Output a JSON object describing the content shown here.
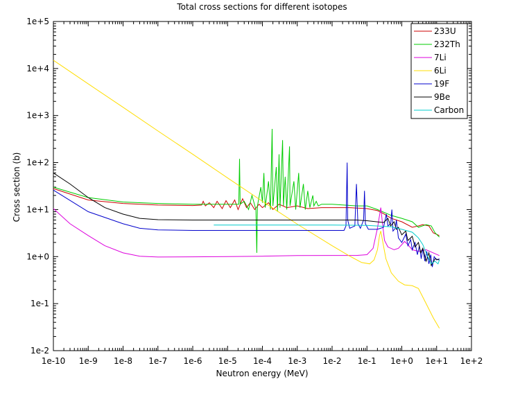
{
  "chart_data": {
    "type": "line",
    "title": "Total cross sections for different isotopes",
    "xlabel": "Neutron energy (MeV)",
    "ylabel": "Cross section (b)",
    "xscale": "log",
    "yscale": "log",
    "xlim": [
      1e-10,
      100
    ],
    "ylim": [
      0.01,
      100000
    ],
    "grid": false,
    "legend_position": "top-right",
    "xticks": [
      {
        "value": 1e-10,
        "label": "1e-10"
      },
      {
        "value": 1e-09,
        "label": "1e-9"
      },
      {
        "value": 1e-08,
        "label": "1e-8"
      },
      {
        "value": 1e-07,
        "label": "1e-7"
      },
      {
        "value": 1e-06,
        "label": "1e-6"
      },
      {
        "value": 1e-05,
        "label": "1e-5"
      },
      {
        "value": 0.0001,
        "label": "1e-4"
      },
      {
        "value": 0.001,
        "label": "1e-3"
      },
      {
        "value": 0.01,
        "label": "1e-2"
      },
      {
        "value": 0.1,
        "label": "1e-1"
      },
      {
        "value": 1,
        "label": "1e+0"
      },
      {
        "value": 10,
        "label": "1e+1"
      },
      {
        "value": 100,
        "label": "1e+2"
      }
    ],
    "yticks": [
      {
        "value": 0.01,
        "label": "1e-2"
      },
      {
        "value": 0.1,
        "label": "1e-1"
      },
      {
        "value": 1,
        "label": "1e+0"
      },
      {
        "value": 10,
        "label": "1e+1"
      },
      {
        "value": 100,
        "label": "1e+2"
      },
      {
        "value": 1000,
        "label": "1e+3"
      },
      {
        "value": 10000,
        "label": "1e+4"
      },
      {
        "value": 100000,
        "label": "1e+5"
      }
    ],
    "series": [
      {
        "name": "233U",
        "color": "#cc0000",
        "points": [
          [
            1e-10,
            28
          ],
          [
            1e-09,
            16
          ],
          [
            1e-08,
            13.5
          ],
          [
            1e-07,
            12.5
          ],
          [
            1e-06,
            12.2
          ],
          [
            1.8e-06,
            12.5
          ],
          [
            2e-06,
            15
          ],
          [
            2.3e-06,
            12
          ],
          [
            3e-06,
            14
          ],
          [
            4e-06,
            11
          ],
          [
            5e-06,
            15
          ],
          [
            7e-06,
            10.5
          ],
          [
            9e-06,
            15.5
          ],
          [
            1.2e-05,
            11
          ],
          [
            1.6e-05,
            16
          ],
          [
            2e-05,
            10
          ],
          [
            2.7e-05,
            17
          ],
          [
            3.5e-05,
            11
          ],
          [
            4.5e-05,
            14
          ],
          [
            6e-05,
            10
          ],
          [
            8e-05,
            13
          ],
          [
            0.0001,
            11
          ],
          [
            0.00015,
            14
          ],
          [
            0.0002,
            10
          ],
          [
            0.0003,
            13
          ],
          [
            0.0005,
            11
          ],
          [
            0.001,
            12
          ],
          [
            0.002,
            10.5
          ],
          [
            0.005,
            11
          ],
          [
            0.01,
            11
          ],
          [
            0.03,
            11
          ],
          [
            0.1,
            10.5
          ],
          [
            0.2,
            9.5
          ],
          [
            0.3,
            8.2
          ],
          [
            0.5,
            6.5
          ],
          [
            1,
            5.5
          ],
          [
            2,
            4.2
          ],
          [
            3,
            4.5
          ],
          [
            4,
            4.8
          ],
          [
            6,
            4.5
          ],
          [
            8,
            3.2
          ],
          [
            12,
            2.8
          ]
        ]
      },
      {
        "name": "232Th",
        "color": "#00cc00",
        "points": [
          [
            1e-10,
            30
          ],
          [
            1e-09,
            18
          ],
          [
            1e-08,
            14.5
          ],
          [
            1e-07,
            13.5
          ],
          [
            1e-06,
            13
          ],
          [
            1e-05,
            13
          ],
          [
            2.1e-05,
            13
          ],
          [
            2.2e-05,
            120
          ],
          [
            2.3e-05,
            13
          ],
          [
            3e-05,
            15
          ],
          [
            4e-05,
            10
          ],
          [
            5e-05,
            20
          ],
          [
            6.5e-05,
            10
          ],
          [
            6.9e-05,
            1.2
          ],
          [
            7.2e-05,
            12
          ],
          [
            9e-05,
            30
          ],
          [
            0.0001,
            14
          ],
          [
            0.00011,
            60
          ],
          [
            0.00012,
            11
          ],
          [
            0.00015,
            40
          ],
          [
            0.00017,
            10
          ],
          [
            0.00019,
            520
          ],
          [
            0.0002,
            12
          ],
          [
            0.00025,
            80
          ],
          [
            0.00027,
            9
          ],
          [
            0.0003,
            150
          ],
          [
            0.00032,
            11
          ],
          [
            0.00038,
            300
          ],
          [
            0.0004,
            12
          ],
          [
            0.00045,
            50
          ],
          [
            0.0005,
            10
          ],
          [
            0.0006,
            220
          ],
          [
            0.00062,
            12
          ],
          [
            0.0008,
            40
          ],
          [
            0.0009,
            10
          ],
          [
            0.0011,
            60
          ],
          [
            0.0012,
            11
          ],
          [
            0.0015,
            35
          ],
          [
            0.0017,
            10
          ],
          [
            0.002,
            25
          ],
          [
            0.0023,
            11
          ],
          [
            0.0028,
            20
          ],
          [
            0.003,
            12
          ],
          [
            0.0035,
            15
          ],
          [
            0.004,
            12
          ],
          [
            0.005,
            13
          ],
          [
            0.01,
            13
          ],
          [
            0.05,
            12
          ],
          [
            0.1,
            12
          ],
          [
            0.2,
            10
          ],
          [
            0.5,
            7.5
          ],
          [
            1,
            6.5
          ],
          [
            2,
            5.5
          ],
          [
            3,
            4.2
          ],
          [
            5,
            4.8
          ],
          [
            7,
            4.5
          ],
          [
            9,
            3.2
          ],
          [
            12,
            2.6
          ]
        ]
      },
      {
        "name": "7Li",
        "color": "#dd00dd",
        "points": [
          [
            1e-10,
            10.5
          ],
          [
            3e-10,
            5
          ],
          [
            1e-09,
            2.8
          ],
          [
            3e-09,
            1.7
          ],
          [
            1e-08,
            1.2
          ],
          [
            3e-08,
            1.02
          ],
          [
            1e-07,
            0.98
          ],
          [
            1e-06,
            0.99
          ],
          [
            1e-05,
            1.0
          ],
          [
            0.0001,
            1.02
          ],
          [
            0.001,
            1.05
          ],
          [
            0.01,
            1.06
          ],
          [
            0.05,
            1.06
          ],
          [
            0.1,
            1.1
          ],
          [
            0.15,
            1.5
          ],
          [
            0.2,
            4
          ],
          [
            0.25,
            11
          ],
          [
            0.28,
            5
          ],
          [
            0.32,
            2.2
          ],
          [
            0.4,
            1.6
          ],
          [
            0.6,
            1.4
          ],
          [
            0.8,
            1.5
          ],
          [
            1,
            1.8
          ],
          [
            1.2,
            2.1
          ],
          [
            1.5,
            1.8
          ],
          [
            2,
            1.4
          ],
          [
            3,
            1.3
          ],
          [
            5,
            1.4
          ],
          [
            8,
            1.2
          ],
          [
            12,
            1.05
          ]
        ]
      },
      {
        "name": "6Li",
        "color": "#ffdd00",
        "points": [
          [
            1e-10,
            15000
          ],
          [
            1e-09,
            4700
          ],
          [
            1e-08,
            1500
          ],
          [
            1e-07,
            470
          ],
          [
            1e-06,
            150
          ],
          [
            1e-05,
            47
          ],
          [
            0.0001,
            15
          ],
          [
            0.001,
            4.9
          ],
          [
            0.01,
            1.7
          ],
          [
            0.03,
            1.05
          ],
          [
            0.07,
            0.75
          ],
          [
            0.12,
            0.7
          ],
          [
            0.16,
            0.85
          ],
          [
            0.2,
            1.4
          ],
          [
            0.23,
            2.8
          ],
          [
            0.25,
            3.5
          ],
          [
            0.28,
            2.2
          ],
          [
            0.35,
            0.9
          ],
          [
            0.5,
            0.45
          ],
          [
            0.8,
            0.3
          ],
          [
            1.2,
            0.25
          ],
          [
            2,
            0.24
          ],
          [
            3,
            0.21
          ],
          [
            5,
            0.1
          ],
          [
            8,
            0.05
          ],
          [
            12,
            0.03
          ]
        ]
      },
      {
        "name": "19F",
        "color": "#0000cc",
        "points": [
          [
            1e-10,
            26
          ],
          [
            1e-09,
            9
          ],
          [
            1e-08,
            5
          ],
          [
            3e-08,
            4
          ],
          [
            1e-07,
            3.7
          ],
          [
            1e-06,
            3.6
          ],
          [
            1e-05,
            3.6
          ],
          [
            0.0001,
            3.6
          ],
          [
            0.001,
            3.6
          ],
          [
            0.01,
            3.6
          ],
          [
            0.022,
            3.6
          ],
          [
            0.025,
            4.5
          ],
          [
            0.027,
            100
          ],
          [
            0.028,
            6
          ],
          [
            0.032,
            4
          ],
          [
            0.045,
            4.5
          ],
          [
            0.05,
            35
          ],
          [
            0.055,
            5
          ],
          [
            0.065,
            4
          ],
          [
            0.08,
            6
          ],
          [
            0.085,
            25
          ],
          [
            0.09,
            5
          ],
          [
            0.11,
            3.8
          ],
          [
            0.2,
            3.8
          ],
          [
            0.3,
            4.2
          ],
          [
            0.36,
            8
          ],
          [
            0.4,
            4.5
          ],
          [
            0.48,
            5
          ],
          [
            0.52,
            10
          ],
          [
            0.56,
            3.5
          ],
          [
            0.65,
            4
          ],
          [
            0.7,
            6
          ],
          [
            0.8,
            2.5
          ],
          [
            1,
            2
          ],
          [
            1.3,
            3
          ],
          [
            1.5,
            1.7
          ],
          [
            1.8,
            2.3
          ],
          [
            2,
            1.4
          ],
          [
            2.4,
            2
          ],
          [
            2.8,
            1.1
          ],
          [
            3.2,
            1.7
          ],
          [
            3.6,
            0.9
          ],
          [
            4,
            1.5
          ],
          [
            4.6,
            0.8
          ],
          [
            5.2,
            1.3
          ],
          [
            6,
            0.7
          ],
          [
            6.8,
            1.1
          ],
          [
            7.5,
            0.6
          ],
          [
            8.5,
            1.0
          ],
          [
            10,
            0.85
          ],
          [
            12,
            0.9
          ]
        ]
      },
      {
        "name": "9Be",
        "color": "#000000",
        "points": [
          [
            1e-10,
            60
          ],
          [
            3e-10,
            35
          ],
          [
            1e-09,
            18
          ],
          [
            3e-09,
            11
          ],
          [
            1e-08,
            8
          ],
          [
            3e-08,
            6.5
          ],
          [
            1e-07,
            6.1
          ],
          [
            1e-06,
            6.0
          ],
          [
            1e-05,
            6.0
          ],
          [
            0.0001,
            6.0
          ],
          [
            0.001,
            6.0
          ],
          [
            0.01,
            6.0
          ],
          [
            0.05,
            6.0
          ],
          [
            0.1,
            5.8
          ],
          [
            0.3,
            5.3
          ],
          [
            0.4,
            6.5
          ],
          [
            0.48,
            4.5
          ],
          [
            0.6,
            5.5
          ],
          [
            0.7,
            3.8
          ],
          [
            0.8,
            4.2
          ],
          [
            1,
            2.9
          ],
          [
            1.3,
            3.5
          ],
          [
            1.5,
            2.2
          ],
          [
            2,
            2.7
          ],
          [
            2.4,
            1.6
          ],
          [
            3,
            2.0
          ],
          [
            3.5,
            1.2
          ],
          [
            4,
            1.5
          ],
          [
            5,
            0.8
          ],
          [
            6,
            1.2
          ],
          [
            7,
            0.65
          ],
          [
            9,
            0.9
          ],
          [
            12,
            0.85
          ]
        ]
      },
      {
        "name": "Carbon",
        "color": "#00cccc",
        "points": [
          [
            4e-06,
            4.7
          ],
          [
            1e-05,
            4.7
          ],
          [
            0.0001,
            4.7
          ],
          [
            0.001,
            4.7
          ],
          [
            0.01,
            4.7
          ],
          [
            0.1,
            4.6
          ],
          [
            0.5,
            4.3
          ],
          [
            1,
            3.8
          ],
          [
            2,
            3.3
          ],
          [
            3,
            2.5
          ],
          [
            4,
            1.8
          ],
          [
            5,
            1.2
          ],
          [
            6,
            0.9
          ],
          [
            7,
            0.7
          ],
          [
            9,
            0.8
          ],
          [
            11,
            0.7
          ],
          [
            12,
            0.85
          ]
        ]
      }
    ]
  }
}
